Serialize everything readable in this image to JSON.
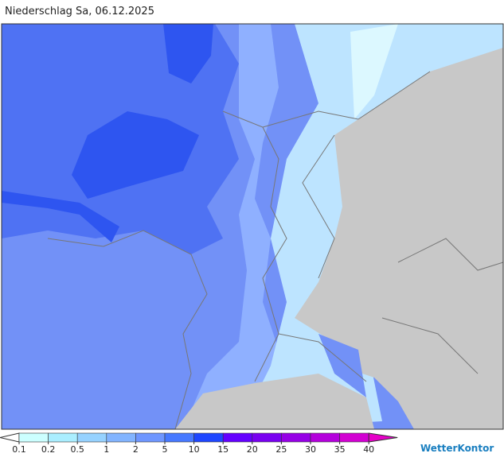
{
  "header": {
    "title": "Niederschlag Sa, 06.12.2025"
  },
  "legend": {
    "ticks": [
      0.1,
      0.2,
      0.5,
      1,
      2,
      5,
      10,
      15,
      20,
      25,
      30,
      35,
      40
    ],
    "colors": [
      "#ccffff",
      "#aaeeff",
      "#96d2ff",
      "#82b4ff",
      "#6e96ff",
      "#4678ff",
      "#1e46ff",
      "#6400ff",
      "#7800f0",
      "#9600e6",
      "#b400dc",
      "#d200d2"
    ],
    "under_color": "#ffffff",
    "over_color": "#e600c8"
  },
  "footer": {
    "brand": "WetterKontor"
  }
}
